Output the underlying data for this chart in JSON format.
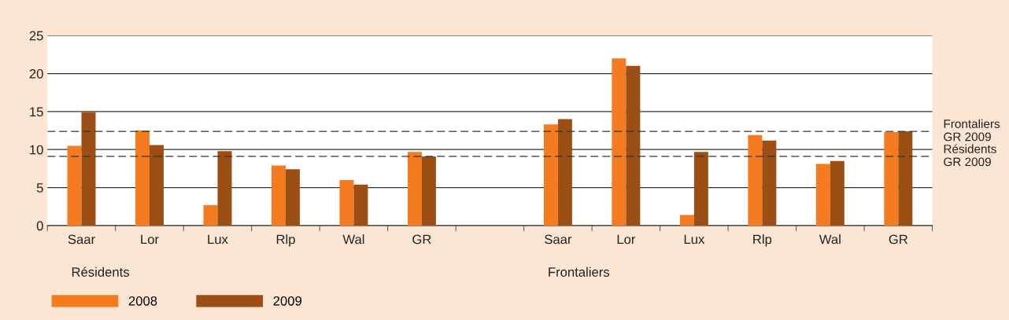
{
  "chart_data": {
    "type": "bar",
    "categories": [
      "Saar",
      "Lor",
      "Lux",
      "Rlp",
      "Wal",
      "GR",
      null,
      "Saar",
      "Lor",
      "Lux",
      "Rlp",
      "Wal",
      "GR"
    ],
    "series": [
      {
        "name": "2008",
        "color": "#f47b20",
        "values": [
          10.5,
          12.5,
          2.7,
          7.9,
          6.0,
          9.7,
          null,
          13.3,
          22.0,
          1.4,
          11.9,
          8.1,
          12.3
        ]
      },
      {
        "name": "2009",
        "color": "#9c4f15",
        "values": [
          14.9,
          10.6,
          9.8,
          7.4,
          5.4,
          9.1,
          null,
          14.0,
          21.0,
          9.7,
          11.2,
          8.5,
          12.4
        ]
      }
    ],
    "ylim": [
      0,
      25
    ],
    "yticks": [
      0,
      5,
      10,
      15,
      20,
      25
    ],
    "grid": "y",
    "legend": "bottom left",
    "ref_lines": [
      {
        "axis": "y",
        "value": 12.4,
        "label": "Frontaliers\nGR 2009",
        "line_style": "dashed",
        "color": "#333333"
      },
      {
        "axis": "y",
        "value": 9.1,
        "label": "Résidents\nGR 2009",
        "line_style": "dashed",
        "color": "#333333"
      }
    ],
    "annotations": [
      "Résidents",
      "Frontaliers"
    ]
  }
}
